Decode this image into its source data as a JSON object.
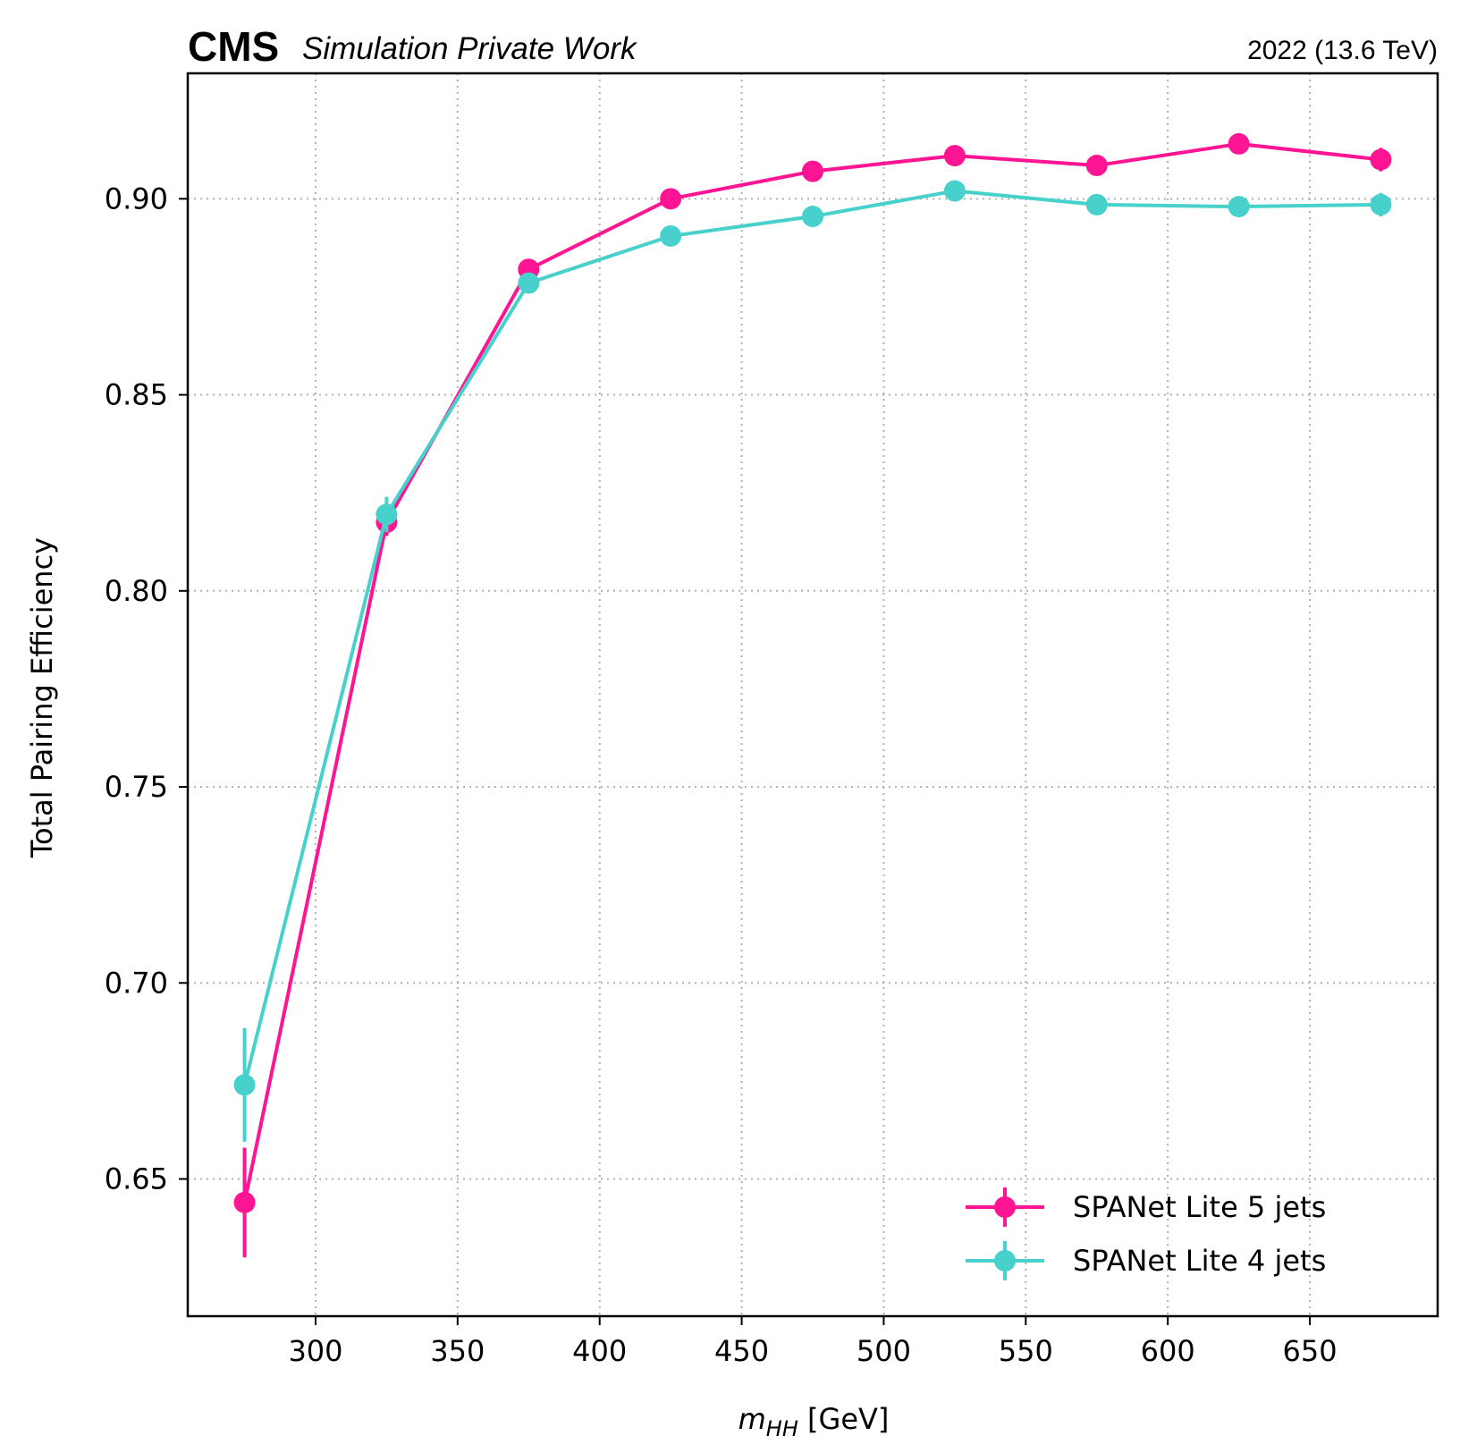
{
  "header": {
    "experiment": "CMS",
    "subtitle": "Simulation Private Work",
    "lumi": "2022 (13.6 TeV)"
  },
  "chart_data": {
    "type": "line",
    "xlabel_main": "m",
    "xlabel_sub": "HH",
    "xlabel_unit": " [GeV]",
    "ylabel": "Total Pairing Efficiency",
    "xlim": [
      255,
      695
    ],
    "ylim": [
      0.615,
      0.932
    ],
    "xticks": [
      300,
      350,
      400,
      450,
      500,
      550,
      600,
      650
    ],
    "yticks": [
      0.65,
      0.7,
      0.75,
      0.8,
      0.85,
      0.9
    ],
    "ytick_labels": [
      "0.65",
      "0.70",
      "0.75",
      "0.80",
      "0.85",
      "0.90"
    ],
    "grid": true,
    "legend_position": "lower-right",
    "x": [
      275,
      325,
      375,
      425,
      475,
      525,
      575,
      625,
      675
    ],
    "series": [
      {
        "name": "SPANet Lite 5 jets",
        "color": "#ff1493",
        "values": [
          0.644,
          0.8175,
          0.882,
          0.9,
          0.907,
          0.911,
          0.9085,
          0.914,
          0.91
        ],
        "errors": [
          0.014,
          0.0035,
          0.0018,
          0.0015,
          0.0014,
          0.0014,
          0.0016,
          0.0018,
          0.003
        ]
      },
      {
        "name": "SPANet Lite 4 jets",
        "color": "#48d1cc",
        "values": [
          0.674,
          0.8195,
          0.8785,
          0.8905,
          0.8955,
          0.902,
          0.8985,
          0.898,
          0.8985
        ],
        "errors": [
          0.0145,
          0.0045,
          0.002,
          0.0015,
          0.0014,
          0.0015,
          0.0015,
          0.0017,
          0.003
        ]
      }
    ]
  }
}
